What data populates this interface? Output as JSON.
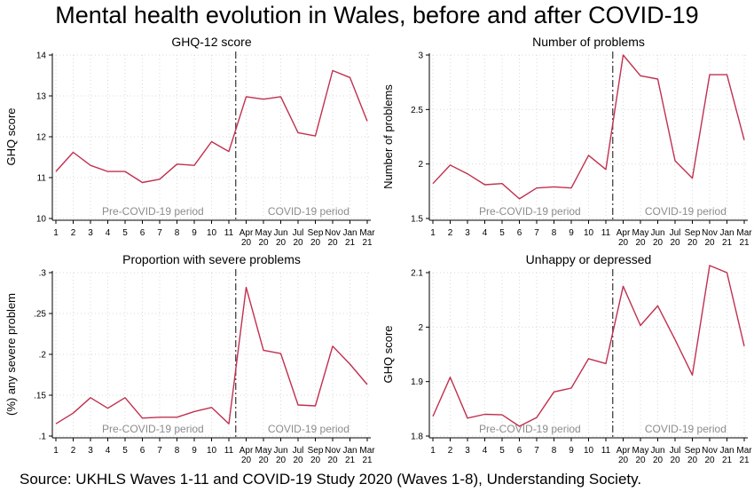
{
  "title": "Mental health evolution in Wales, before and after COVID-19",
  "source": "Source: UKHLS Waves 1-11 and COVID-19 Study 2020 (Waves 1-8), Understanding Society.",
  "colors": {
    "line": "#c0304f",
    "grid": "#d9d9d9",
    "shade_text": "#8c8c8c",
    "axis": "#000000"
  },
  "chart_data": [
    {
      "type": "line",
      "title": "GHQ-12 score",
      "ylabel": "GHQ score",
      "ylim": [
        10,
        14
      ],
      "yticks": [
        10,
        11,
        12,
        13,
        14
      ],
      "ytick_labels": [
        "10",
        "11",
        "12",
        "13",
        "14"
      ],
      "x_tick_labels": [
        [
          "1"
        ],
        [
          "2"
        ],
        [
          "3"
        ],
        [
          "4"
        ],
        [
          "5"
        ],
        [
          "6"
        ],
        [
          "7"
        ],
        [
          "8"
        ],
        [
          "9"
        ],
        [
          "10"
        ],
        [
          "11"
        ],
        [
          "Apr",
          "20"
        ],
        [
          "May",
          "20"
        ],
        [
          "Jun",
          "20"
        ],
        [
          "Jul",
          "20"
        ],
        [
          "Sep",
          "20"
        ],
        [
          "Nov",
          "20"
        ],
        [
          "Jan",
          "21"
        ],
        [
          "Mar",
          "21"
        ]
      ],
      "series": [
        {
          "values": [
            11.15,
            11.62,
            11.3,
            11.15,
            11.15,
            10.88,
            10.96,
            11.33,
            11.3,
            11.88,
            11.64,
            12.98,
            12.92,
            12.98,
            12.1,
            12.02,
            13.62,
            13.45,
            12.38
          ]
        }
      ],
      "period_labels": [
        "Pre-COVID-19 period",
        "COVID-19 period"
      ],
      "grid": true
    },
    {
      "type": "line",
      "title": "Number of problems",
      "ylabel": "Number of problems",
      "ylim": [
        1.5,
        3
      ],
      "yticks": [
        1.5,
        2,
        2.5,
        3
      ],
      "ytick_labels": [
        "1.5",
        "2",
        "2.5",
        "3"
      ],
      "x_tick_labels": [
        [
          "1"
        ],
        [
          "2"
        ],
        [
          "3"
        ],
        [
          "4"
        ],
        [
          "5"
        ],
        [
          "6"
        ],
        [
          "7"
        ],
        [
          "8"
        ],
        [
          "9"
        ],
        [
          "10"
        ],
        [
          "11"
        ],
        [
          "Apr",
          "20"
        ],
        [
          "May",
          "20"
        ],
        [
          "Jun",
          "20"
        ],
        [
          "Jul",
          "20"
        ],
        [
          "Sep",
          "20"
        ],
        [
          "Nov",
          "20"
        ],
        [
          "Jan",
          "21"
        ],
        [
          "Mar",
          "21"
        ]
      ],
      "series": [
        {
          "values": [
            1.82,
            1.99,
            1.91,
            1.81,
            1.82,
            1.68,
            1.78,
            1.79,
            1.78,
            2.08,
            1.95,
            3.0,
            2.81,
            2.78,
            2.03,
            1.87,
            2.82,
            2.82,
            2.22
          ]
        }
      ],
      "period_labels": [
        "Pre-COVID-19 period",
        "COVID-19 period"
      ],
      "grid": true
    },
    {
      "type": "line",
      "title": "Proportion with severe problems",
      "ylabel": "(%) any severe problem",
      "ylim": [
        0.1,
        0.3
      ],
      "yticks": [
        0.1,
        0.15,
        0.2,
        0.25,
        0.3
      ],
      "ytick_labels": [
        ".1",
        ".15",
        ".2",
        ".25",
        ".3"
      ],
      "x_tick_labels": [
        [
          "1"
        ],
        [
          "2"
        ],
        [
          "3"
        ],
        [
          "4"
        ],
        [
          "5"
        ],
        [
          "6"
        ],
        [
          "7"
        ],
        [
          "8"
        ],
        [
          "9"
        ],
        [
          "10"
        ],
        [
          "11"
        ],
        [
          "Apr",
          "20"
        ],
        [
          "May",
          "20"
        ],
        [
          "Jun",
          "20"
        ],
        [
          "Jul",
          "20"
        ],
        [
          "Sep",
          "20"
        ],
        [
          "Nov",
          "20"
        ],
        [
          "Jan",
          "21"
        ],
        [
          "Mar",
          "21"
        ]
      ],
      "series": [
        {
          "values": [
            0.115,
            0.128,
            0.147,
            0.134,
            0.147,
            0.122,
            0.123,
            0.123,
            0.13,
            0.135,
            0.115,
            0.282,
            0.205,
            0.201,
            0.138,
            0.137,
            0.21,
            0.188,
            0.163
          ]
        }
      ],
      "period_labels": [
        "Pre-COVID-19 period",
        "COVID-19 period"
      ],
      "grid": true
    },
    {
      "type": "line",
      "title": "Unhappy or depressed",
      "ylabel": "GHQ score",
      "ylim": [
        1.8,
        2.1
      ],
      "yticks": [
        1.8,
        1.9,
        2.0,
        2.1
      ],
      "ytick_labels": [
        "1.8",
        "1.9",
        "2",
        "2.1"
      ],
      "x_tick_labels": [
        [
          "1"
        ],
        [
          "2"
        ],
        [
          "3"
        ],
        [
          "4"
        ],
        [
          "5"
        ],
        [
          "6"
        ],
        [
          "7"
        ],
        [
          "8"
        ],
        [
          "9"
        ],
        [
          "10"
        ],
        [
          "11"
        ],
        [
          "Apr",
          "20"
        ],
        [
          "May",
          "20"
        ],
        [
          "Jun",
          "20"
        ],
        [
          "Jul",
          "20"
        ],
        [
          "Sep",
          "20"
        ],
        [
          "Nov",
          "20"
        ],
        [
          "Jan",
          "21"
        ],
        [
          "Mar",
          "21"
        ]
      ],
      "series": [
        {
          "values": [
            1.836,
            1.908,
            1.833,
            1.84,
            1.839,
            1.818,
            1.834,
            1.881,
            1.888,
            1.942,
            1.933,
            2.075,
            2.003,
            2.039,
            1.977,
            1.912,
            2.113,
            2.1,
            1.965
          ]
        }
      ],
      "period_labels": [
        "Pre-COVID-19 period",
        "COVID-19 period"
      ],
      "grid": true
    }
  ]
}
